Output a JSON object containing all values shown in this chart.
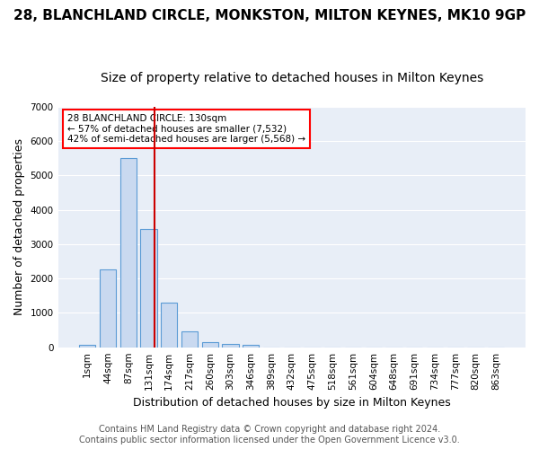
{
  "title": "28, BLANCHLAND CIRCLE, MONKSTON, MILTON KEYNES, MK10 9GP",
  "subtitle": "Size of property relative to detached houses in Milton Keynes",
  "xlabel": "Distribution of detached houses by size in Milton Keynes",
  "ylabel": "Number of detached properties",
  "bin_labels": [
    "1sqm",
    "44sqm",
    "87sqm",
    "131sqm",
    "174sqm",
    "217sqm",
    "260sqm",
    "303sqm",
    "346sqm",
    "389sqm",
    "432sqm",
    "475sqm",
    "518sqm",
    "561sqm",
    "604sqm",
    "648sqm",
    "691sqm",
    "734sqm",
    "777sqm",
    "820sqm",
    "863sqm"
  ],
  "bar_values": [
    75,
    2270,
    5500,
    3430,
    1300,
    450,
    160,
    85,
    80,
    0,
    0,
    0,
    0,
    0,
    0,
    0,
    0,
    0,
    0,
    0,
    0
  ],
  "bar_color": "#c9d9f0",
  "bar_edgecolor": "#5b9bd5",
  "red_line_bin_index": 3,
  "annotation_text": "28 BLANCHLAND CIRCLE: 130sqm\n← 57% of detached houses are smaller (7,532)\n42% of semi-detached houses are larger (5,568) →",
  "annotation_box_color": "white",
  "annotation_box_edgecolor": "red",
  "red_line_color": "#cc0000",
  "ylim": [
    0,
    7000
  ],
  "yticks": [
    0,
    1000,
    2000,
    3000,
    4000,
    5000,
    6000,
    7000
  ],
  "footer": "Contains HM Land Registry data © Crown copyright and database right 2024.\nContains public sector information licensed under the Open Government Licence v3.0.",
  "background_color": "#e8eef7",
  "grid_color": "white",
  "title_fontsize": 11,
  "subtitle_fontsize": 10,
  "xlabel_fontsize": 9,
  "ylabel_fontsize": 9,
  "tick_fontsize": 7.5,
  "footer_fontsize": 7
}
